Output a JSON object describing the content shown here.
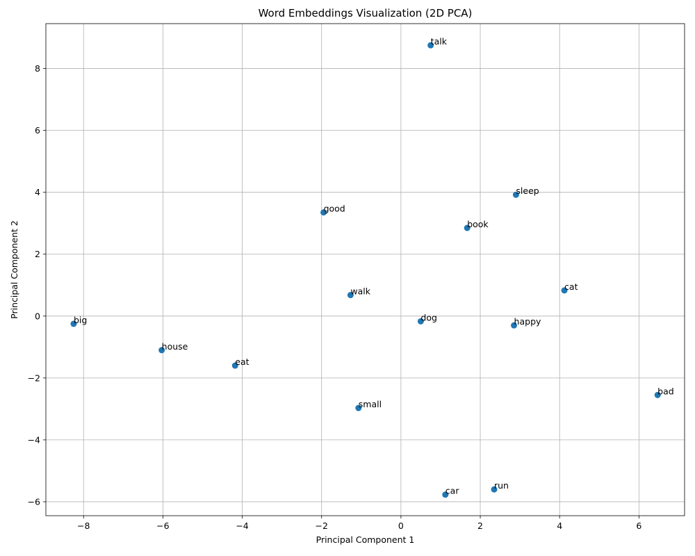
{
  "chart_data": {
    "type": "scatter",
    "title": "Word Embeddings Visualization (2D PCA)",
    "xlabel": "Principal Component 1",
    "ylabel": "Principal Component 2",
    "xlim": [
      -8.95,
      7.15
    ],
    "ylim": [
      -6.45,
      9.45
    ],
    "xticks": [
      -8,
      -6,
      -4,
      -2,
      0,
      2,
      4,
      6
    ],
    "yticks": [
      -6,
      -4,
      -2,
      0,
      2,
      4,
      6,
      8
    ],
    "grid": true,
    "marker_color": "#1f77b4",
    "points": [
      {
        "label": "talk",
        "x": 0.75,
        "y": 8.75
      },
      {
        "label": "sleep",
        "x": 2.9,
        "y": 3.92
      },
      {
        "label": "good",
        "x": -1.95,
        "y": 3.35
      },
      {
        "label": "book",
        "x": 1.67,
        "y": 2.85
      },
      {
        "label": "cat",
        "x": 4.12,
        "y": 0.83
      },
      {
        "label": "walk",
        "x": -1.27,
        "y": 0.68
      },
      {
        "label": "dog",
        "x": 0.5,
        "y": -0.17
      },
      {
        "label": "happy",
        "x": 2.85,
        "y": -0.3
      },
      {
        "label": "big",
        "x": -8.25,
        "y": -0.25
      },
      {
        "label": "house",
        "x": -6.03,
        "y": -1.1
      },
      {
        "label": "eat",
        "x": -4.18,
        "y": -1.6
      },
      {
        "label": "bad",
        "x": 6.47,
        "y": -2.55
      },
      {
        "label": "small",
        "x": -1.07,
        "y": -2.97
      },
      {
        "label": "run",
        "x": 2.35,
        "y": -5.6
      },
      {
        "label": "car",
        "x": 1.12,
        "y": -5.77
      }
    ]
  }
}
